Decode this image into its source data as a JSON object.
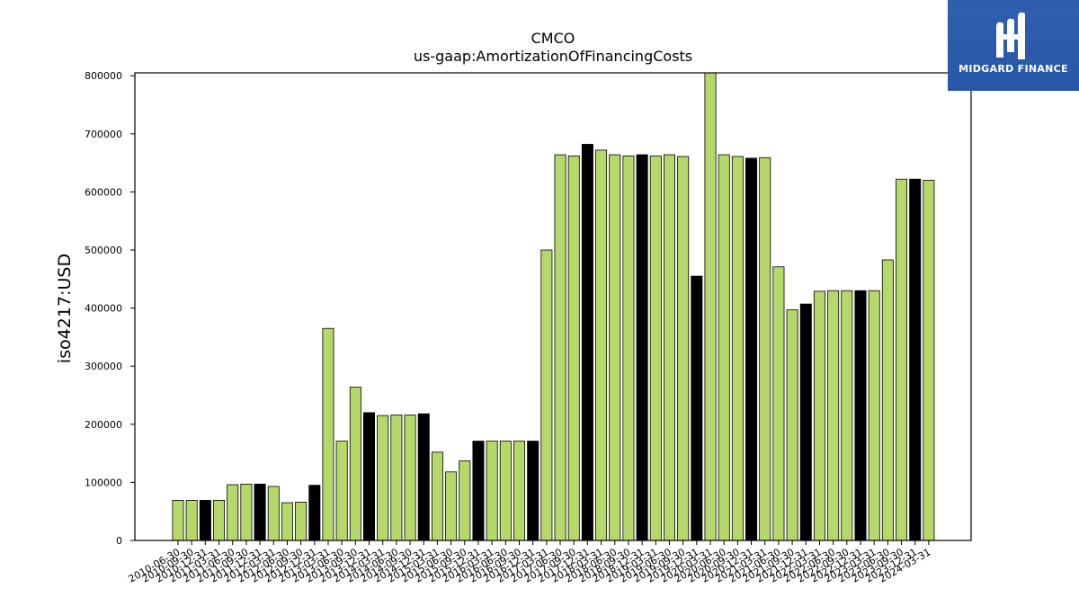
{
  "brand": {
    "name": "MIDGARD FINANCE",
    "icon": "midgard-logo-icon",
    "color": "#2b5aa9"
  },
  "chart_data": {
    "type": "bar",
    "title": "CMCO",
    "subtitle": "us-gaap:AmortizationOfFinancingCosts",
    "xlabel": "",
    "ylabel": "iso4217:USD",
    "ylim": [
      0,
      805000
    ],
    "yticks": [
      0,
      100000,
      200000,
      300000,
      400000,
      500000,
      600000,
      700000,
      800000
    ],
    "grid": false,
    "colors": {
      "regular": "#b5d86a",
      "highlight": "#000000",
      "edge": "#000000"
    },
    "categories": [
      "2010-06-30",
      "2010-09-30",
      "2010-12-31",
      "2011-03-31",
      "2011-06-30",
      "2011-09-30",
      "2011-12-31",
      "2012-03-31",
      "2012-06-30",
      "2012-09-30",
      "2012-12-31",
      "2013-03-31",
      "2013-06-30",
      "2013-09-30",
      "2013-12-31",
      "2014-03-31",
      "2014-06-30",
      "2014-09-30",
      "2014-12-31",
      "2015-03-31",
      "2015-06-30",
      "2015-09-30",
      "2015-12-31",
      "2016-03-31",
      "2016-06-30",
      "2016-09-30",
      "2016-12-31",
      "2017-03-31",
      "2017-06-30",
      "2017-09-30",
      "2017-12-31",
      "2018-03-31",
      "2018-06-30",
      "2018-09-30",
      "2018-12-31",
      "2019-03-31",
      "2019-06-30",
      "2019-09-30",
      "2019-12-31",
      "2020-03-31",
      "2020-06-30",
      "2020-09-30",
      "2020-12-31",
      "2021-03-31",
      "2021-06-30",
      "2021-09-30",
      "2021-12-31",
      "2022-03-31",
      "2022-06-30",
      "2022-09-30",
      "2022-12-31",
      "2023-03-31",
      "2023-06-30",
      "2023-09-30",
      "2023-12-31",
      "2024-03-31"
    ],
    "values": [
      69000,
      69000,
      69000,
      69000,
      96000,
      97000,
      97000,
      93000,
      65000,
      66000,
      95000,
      365000,
      171000,
      264000,
      220000,
      215000,
      216000,
      216000,
      218000,
      152000,
      118000,
      137000,
      171000,
      171000,
      171000,
      171000,
      171000,
      500000,
      664000,
      662000,
      682000,
      672000,
      664000,
      662000,
      664000,
      662000,
      664000,
      661000,
      455000,
      810000,
      664000,
      661000,
      658000,
      659000,
      471000,
      397000,
      407000,
      429000,
      430000,
      430000,
      430000,
      430000,
      483000,
      622000,
      622000,
      620000
    ],
    "highlight": [
      false,
      false,
      true,
      false,
      false,
      false,
      true,
      false,
      false,
      false,
      true,
      false,
      false,
      false,
      true,
      false,
      false,
      false,
      true,
      false,
      false,
      false,
      true,
      false,
      false,
      false,
      true,
      false,
      false,
      false,
      true,
      false,
      false,
      false,
      true,
      false,
      false,
      false,
      true,
      false,
      false,
      false,
      true,
      false,
      false,
      false,
      true,
      false,
      false,
      false,
      true,
      false,
      false,
      false,
      true,
      false
    ]
  }
}
